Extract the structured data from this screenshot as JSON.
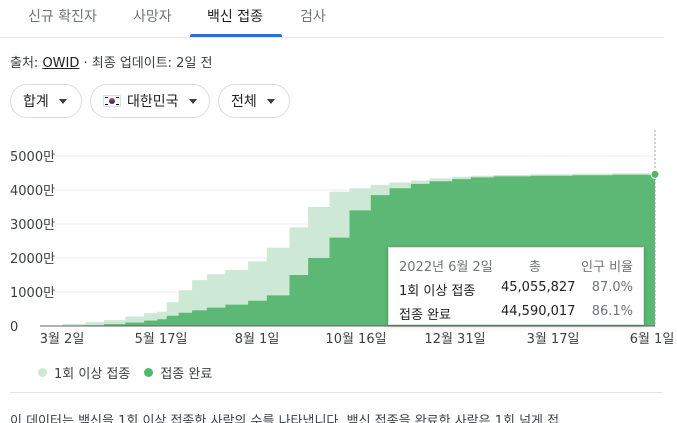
{
  "tabs": [
    {
      "label": "신규 확진자"
    },
    {
      "label": "사망자"
    },
    {
      "label": "백신 접종",
      "active": true
    },
    {
      "label": "검사"
    }
  ],
  "source": {
    "prefix": "출처: ",
    "link": "OWID",
    "suffix": " · 최종 업데이트: 2일 전"
  },
  "filters": {
    "total": "합계",
    "country": "대한민국",
    "range": "전체"
  },
  "colors": {
    "accent": "#1a73e8",
    "at_least_one": "#cde8d4",
    "fully": "#5cb874",
    "fully_dot": "#52b76c"
  },
  "chart_data": {
    "type": "area",
    "y_ticks": [
      "5000만",
      "4000만",
      "3000만",
      "2000만",
      "1000만",
      "0"
    ],
    "x_ticks": [
      "3월 2일",
      "5월 17일",
      "8월 1일",
      "10월 16일",
      "12월 31일",
      "3월 17일",
      "6월 1일"
    ],
    "ylim": [
      0,
      50000000
    ],
    "x": [
      "2021-02-26",
      "2021-03-15",
      "2021-04-01",
      "2021-04-15",
      "2021-05-01",
      "2021-05-15",
      "2021-05-25",
      "2021-06-01",
      "2021-06-10",
      "2021-06-20",
      "2021-07-01",
      "2021-07-15",
      "2021-08-01",
      "2021-08-15",
      "2021-09-01",
      "2021-09-15",
      "2021-10-01",
      "2021-10-16",
      "2021-11-01",
      "2021-11-15",
      "2021-12-01",
      "2021-12-15",
      "2022-01-01",
      "2022-01-15",
      "2022-02-01",
      "2022-03-01",
      "2022-04-01",
      "2022-05-01",
      "2022-06-02"
    ],
    "series": [
      {
        "name": "1회 이상 접종",
        "values": [
          0,
          600000,
          1100000,
          1700000,
          2800000,
          3800000,
          4200000,
          7000000,
          10500000,
          13500000,
          15200000,
          16500000,
          19000000,
          23000000,
          29000000,
          35000000,
          39500000,
          40500000,
          41500000,
          42200000,
          42800000,
          43400000,
          43900000,
          44200000,
          44400000,
          44600000,
          44800000,
          44950000,
          45055827
        ]
      },
      {
        "name": "접종 완료",
        "values": [
          0,
          50000,
          250000,
          550000,
          1000000,
          1600000,
          2000000,
          3000000,
          3900000,
          4600000,
          5400000,
          6300000,
          7400000,
          9000000,
          15000000,
          20000000,
          26000000,
          34000000,
          38500000,
          40500000,
          41800000,
          42600000,
          43200000,
          43700000,
          44000000,
          44200000,
          44350000,
          44480000,
          44590017
        ]
      }
    ]
  },
  "tooltip": {
    "date": "2022년 6월 2일",
    "total_label": "총",
    "ratio_label": "인구 비율",
    "rows": [
      {
        "label": "1회 이상 접종",
        "value": "45,055,827",
        "pct": "87.0%"
      },
      {
        "label": "접종 완료",
        "value": "44,590,017",
        "pct": "86.1%"
      }
    ]
  },
  "legend": {
    "at_least_one": "1회 이상 접종",
    "fully": "접종 완료"
  },
  "description": "이 데이터는 백신을 1회 이상 접종한 사람의 수를 나타냅니다. 백신 접종을 완료한 사람은 1회 넘게 접"
}
